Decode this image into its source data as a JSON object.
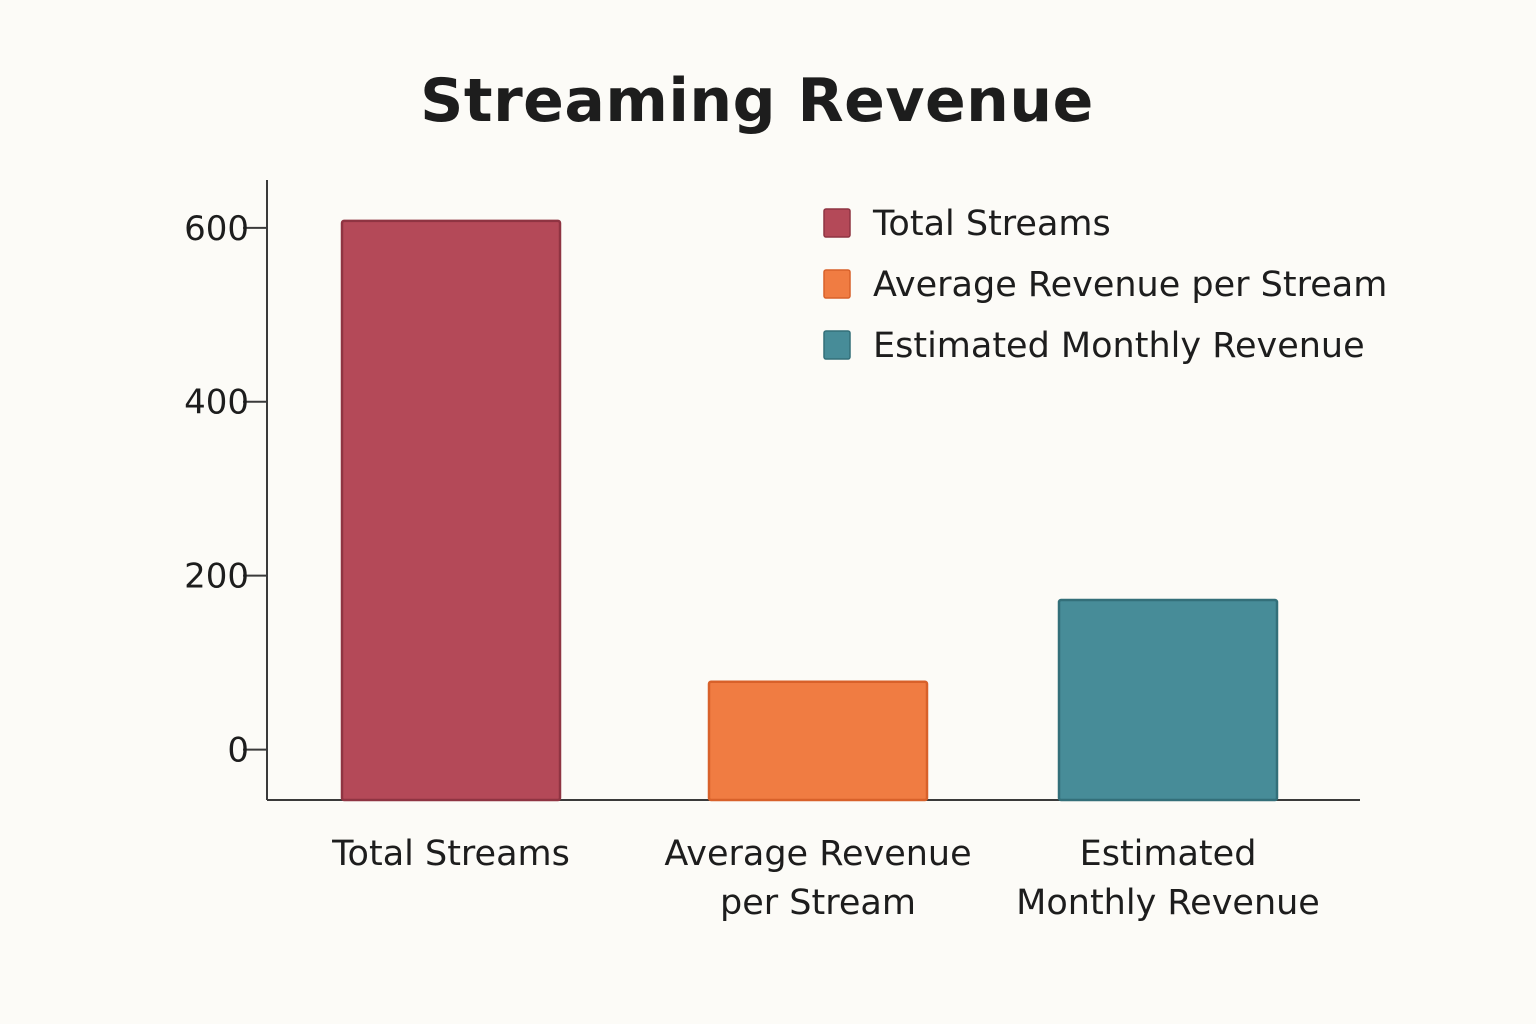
{
  "chart_data": {
    "type": "bar",
    "title": "Streaming Revenue",
    "xlabel": "",
    "ylabel": "",
    "ylim": [
      -58,
      655
    ],
    "yticks": [
      0,
      200,
      400,
      600
    ],
    "grid": false,
    "legend_position": "top-right",
    "categories": [
      [
        "Total Streams"
      ],
      [
        "Average Revenue",
        "per Stream"
      ],
      [
        "Estimated",
        "Monthly Revenue"
      ]
    ],
    "values": [
      608,
      78,
      172
    ],
    "legend": [
      "Total Streams",
      "Average Revenue per Stream",
      "Estimated Monthly Revenue"
    ],
    "colors": [
      "#b44958",
      "#f07c42",
      "#478c98"
    ],
    "edge_colors": [
      "#8f3442",
      "#d8612a",
      "#336f79"
    ]
  }
}
